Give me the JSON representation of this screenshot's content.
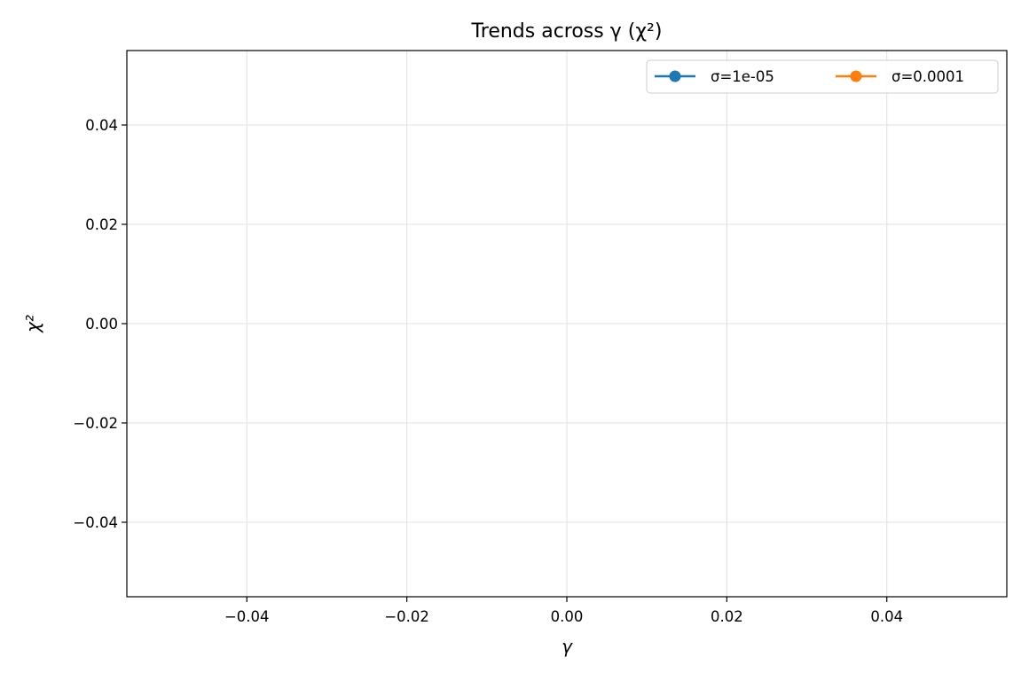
{
  "chart_data": {
    "type": "line",
    "title": "Trends across γ (χ²)",
    "xlabel": "γ",
    "ylabel": "χ²",
    "xlim": [
      -0.055,
      0.055
    ],
    "ylim": [
      -0.055,
      0.055
    ],
    "x_ticks": [
      -0.04,
      -0.02,
      0.0,
      0.02,
      0.04
    ],
    "y_ticks": [
      -0.04,
      -0.02,
      0.0,
      0.02,
      0.04
    ],
    "x_tick_labels": [
      "−0.04",
      "−0.02",
      "0.00",
      "0.02",
      "0.04"
    ],
    "y_tick_labels": [
      "−0.04",
      "−0.02",
      "0.00",
      "0.02",
      "0.04"
    ],
    "grid": true,
    "legend_position": "top-right",
    "series": [
      {
        "name": "σ=1e-05",
        "color": "#1f77b4",
        "marker": "circle",
        "x": [],
        "y": []
      },
      {
        "name": "σ=0.0001",
        "color": "#ff7f0e",
        "marker": "circle",
        "x": [],
        "y": []
      }
    ]
  }
}
